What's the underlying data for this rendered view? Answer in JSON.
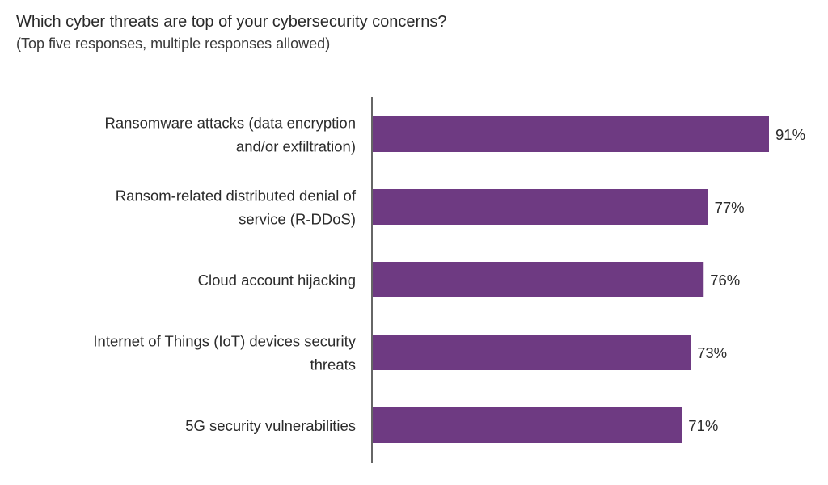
{
  "chart_data": {
    "type": "bar",
    "orientation": "horizontal",
    "title": "Which cyber threats are top of your cybersecurity concerns?",
    "subtitle": "(Top five responses, multiple responses allowed)",
    "categories": [
      [
        "Ransomware attacks (data encryption",
        "and/or exfiltration)"
      ],
      [
        "Ransom-related distributed denial of",
        "service (R-DDoS)"
      ],
      [
        "Cloud account hijacking"
      ],
      [
        "Internet of Things (IoT) devices security",
        "threats"
      ],
      [
        "5G security vulnerabilities"
      ]
    ],
    "values": [
      91,
      77,
      76,
      73,
      71
    ],
    "value_labels": [
      "91%",
      "77%",
      "76%",
      "73%",
      "71%"
    ],
    "unit": "%",
    "xlim": [
      0,
      91
    ],
    "grid": false,
    "legend": "none",
    "bar_color": "#6e3a82"
  }
}
